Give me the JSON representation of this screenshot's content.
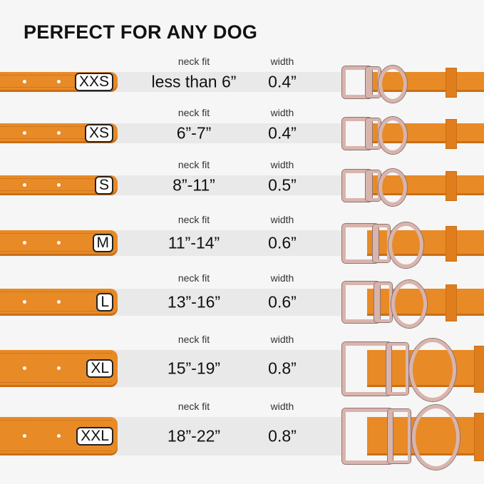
{
  "title": "PERFECT FOR ANY DOG",
  "neck_fit_label": "neck fit",
  "width_label": "width",
  "colors": {
    "strap": "#e88a26",
    "band": "#e9e9e9",
    "background": "#f6f6f6",
    "hardware": "#d9b4ad"
  },
  "sizes": [
    {
      "size": "XXS",
      "neck_fit": "less than 6”",
      "width": "0.4”"
    },
    {
      "size": "XS",
      "neck_fit": "6”-7”",
      "width": "0.4”"
    },
    {
      "size": "S",
      "neck_fit": "8”-11”",
      "width": "0.5”"
    },
    {
      "size": "M",
      "neck_fit": "11”-14”",
      "width": "0.6”"
    },
    {
      "size": "L",
      "neck_fit": "13”-16”",
      "width": "0.6”"
    },
    {
      "size": "XL",
      "neck_fit": "15”-19”",
      "width": "0.8”"
    },
    {
      "size": "XXL",
      "neck_fit": "18”-22”",
      "width": "0.8”"
    }
  ]
}
